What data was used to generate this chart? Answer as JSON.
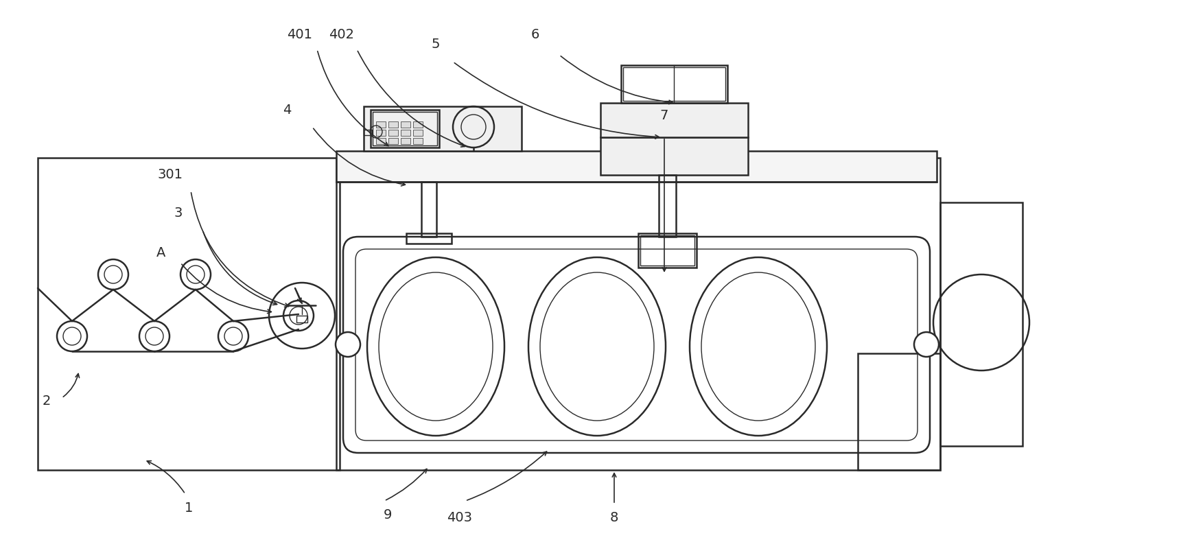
{
  "bg_color": "#ffffff",
  "line_color": "#2a2a2a",
  "lw": 1.8,
  "tlw": 1.0,
  "fs": 14,
  "fig_w": 17.53,
  "fig_h": 7.87,
  "xlim": [
    0,
    1753
  ],
  "ylim": [
    0,
    787
  ]
}
